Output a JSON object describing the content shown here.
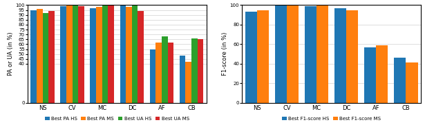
{
  "chart_data": [
    {
      "type": "bar",
      "categories": [
        "NS",
        "CV",
        "MC",
        "DC",
        "AF",
        "CB"
      ],
      "y_label": "PA or UA (in %)",
      "series": [
        {
          "name": "Best PA HS",
          "values": [
            95,
            99,
            97,
            100,
            55,
            48
          ]
        },
        {
          "name": "Best PA MS",
          "values": [
            96,
            99.5,
            98.5,
            98,
            62,
            42
          ]
        },
        {
          "name": "Best UA HS",
          "values": [
            92,
            100,
            100,
            100,
            68,
            66
          ]
        },
        {
          "name": "Best UA MS",
          "values": [
            94,
            99,
            100,
            94,
            62,
            65
          ]
        }
      ],
      "ylim": [
        0,
        100
      ],
      "yticks": [
        0,
        40,
        45,
        50,
        55,
        60,
        65,
        70,
        75,
        80,
        85,
        90,
        95,
        100
      ],
      "grid": true,
      "legend": "bottom"
    },
    {
      "type": "bar",
      "categories": [
        "NS",
        "CV",
        "MC",
        "DC",
        "AF",
        "CB"
      ],
      "y_label": "F1-score (in %)",
      "series": [
        {
          "name": "Best F1-score HS",
          "values": [
            93,
            100,
            99,
            97,
            57,
            46
          ]
        },
        {
          "name": "Best F1-score MS",
          "values": [
            95,
            100,
            100,
            95,
            59,
            41
          ]
        }
      ],
      "ylim": [
        0,
        100
      ],
      "yticks": [
        0,
        20,
        40,
        60,
        80,
        100
      ],
      "grid": true,
      "legend": "bottom"
    }
  ]
}
